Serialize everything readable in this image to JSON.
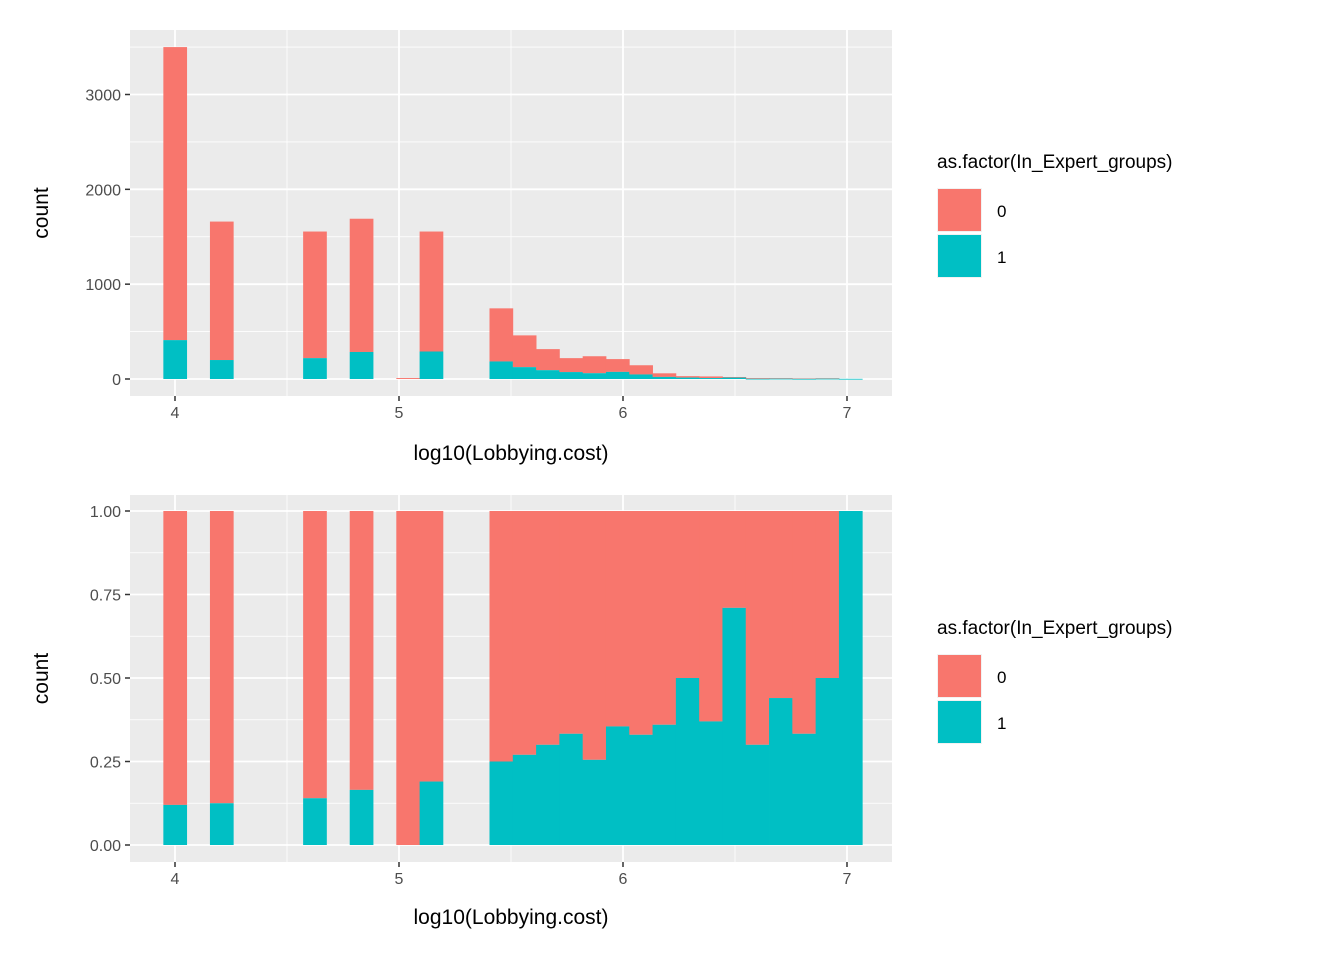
{
  "colors": {
    "group0": "#F8766D",
    "group1": "#00BFC4",
    "panel": "#EBEBEB",
    "grid": "#FFFFFF"
  },
  "chart_data": [
    {
      "type": "bar",
      "stacking": "stack",
      "title": "",
      "xlabel": "log10(Lobbying.cost)",
      "ylabel": "count",
      "xlim": [
        3.8,
        7.2
      ],
      "ylim": [
        -170,
        3670
      ],
      "xticks": [
        "4",
        "5",
        "6",
        "7"
      ],
      "xtick_values": [
        4,
        5,
        6,
        7
      ],
      "yticks": [
        "0",
        "1000",
        "2000",
        "3000"
      ],
      "ytick_values": [
        0,
        1000,
        2000,
        3000
      ],
      "grid": true,
      "bin_width": 0.104,
      "x": [
        4.0,
        4.208,
        4.624,
        4.832,
        5.04,
        5.144,
        5.456,
        5.56,
        5.664,
        5.768,
        5.872,
        5.976,
        6.08,
        6.184,
        6.288,
        6.392,
        6.496,
        6.6,
        6.704,
        6.808,
        6.912,
        7.016
      ],
      "series": [
        {
          "name": "0",
          "values": [
            3090,
            1460,
            1335,
            1405,
            10,
            1265,
            560,
            335,
            222,
            147,
            179,
            135,
            97,
            38,
            15,
            17,
            6,
            7,
            5,
            4,
            4,
            0
          ]
        },
        {
          "name": "1",
          "values": [
            410,
            200,
            220,
            285,
            0,
            290,
            185,
            125,
            93,
            73,
            61,
            75,
            48,
            22,
            15,
            10,
            15,
            3,
            4,
            2,
            4,
            2
          ]
        }
      ],
      "legend": {
        "title": "as.factor(In_Expert_groups)",
        "entries": [
          "0",
          "1"
        ],
        "placement": "right"
      }
    },
    {
      "type": "bar",
      "stacking": "fill",
      "title": "",
      "xlabel": "log10(Lobbying.cost)",
      "ylabel": "count",
      "xlim": [
        3.8,
        7.2
      ],
      "ylim": [
        -0.05,
        1.05
      ],
      "xticks": [
        "4",
        "5",
        "6",
        "7"
      ],
      "xtick_values": [
        4,
        5,
        6,
        7
      ],
      "yticks": [
        "0.00",
        "0.25",
        "0.50",
        "0.75",
        "1.00"
      ],
      "ytick_values": [
        0,
        0.25,
        0.5,
        0.75,
        1.0
      ],
      "grid": true,
      "bin_width": 0.104,
      "x": [
        4.0,
        4.208,
        4.624,
        4.832,
        5.04,
        5.144,
        5.456,
        5.56,
        5.664,
        5.768,
        5.872,
        5.976,
        6.08,
        6.184,
        6.288,
        6.392,
        6.496,
        6.6,
        6.704,
        6.808,
        6.912,
        7.016
      ],
      "series": [
        {
          "name": "0",
          "values": [
            0.88,
            0.875,
            0.86,
            0.835,
            1.0,
            0.81,
            0.75,
            0.73,
            0.7,
            0.667,
            0.745,
            0.645,
            0.67,
            0.64,
            0.5,
            0.63,
            0.29,
            0.7,
            0.56,
            0.667,
            0.5,
            0.0
          ]
        },
        {
          "name": "1",
          "values": [
            0.12,
            0.125,
            0.14,
            0.165,
            0.0,
            0.19,
            0.25,
            0.27,
            0.3,
            0.333,
            0.255,
            0.355,
            0.33,
            0.36,
            0.5,
            0.37,
            0.71,
            0.3,
            0.44,
            0.333,
            0.5,
            1.0
          ]
        }
      ],
      "legend": {
        "title": "as.factor(In_Expert_groups)",
        "entries": [
          "0",
          "1"
        ],
        "placement": "right"
      }
    }
  ]
}
